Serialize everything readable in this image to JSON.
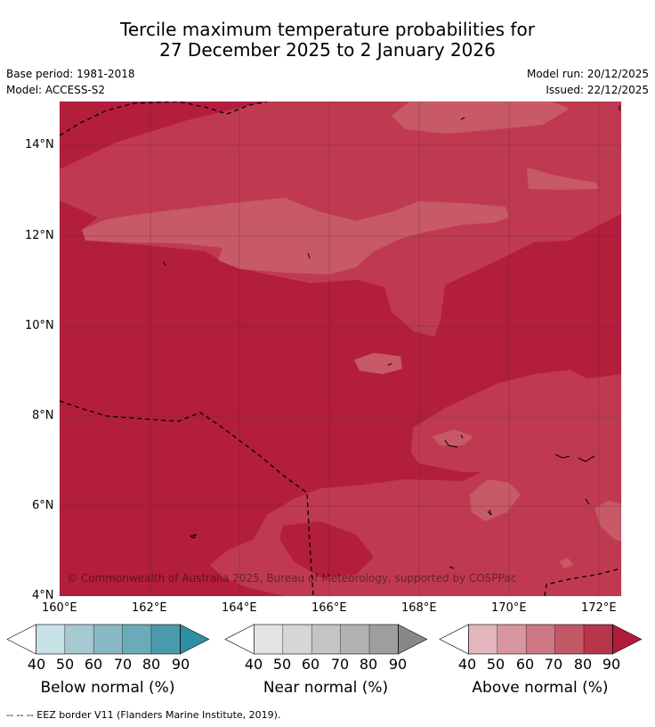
{
  "title": {
    "line1": "Tercile maximum temperature probabilities for",
    "line2": "27 December 2025 to 2 January 2026"
  },
  "meta": {
    "base_period": "Base period: 1981-2018",
    "model": "Model: ACCESS-S2",
    "model_run": "Model run: 20/12/2025",
    "issued": "Issued: 22/12/2025"
  },
  "map": {
    "lat_labels": [
      "14°N",
      "12°N",
      "10°N",
      "8°N",
      "6°N",
      "4°N"
    ],
    "lon_labels": [
      "160°E",
      "162°E",
      "164°E",
      "166°E",
      "168°E",
      "170°E",
      "172°E"
    ],
    "copyright": "© Commonwealth of Australia 2025, Bureau of Meteorology, supported by COSPPac",
    "colors": {
      "dark": "#b31e3c",
      "mid": "#bf3a50",
      "light": "#c85a68"
    }
  },
  "colorbars": [
    {
      "label": "Below normal (%)",
      "ticks": [
        "40",
        "50",
        "60",
        "70",
        "80",
        "90"
      ],
      "colors": [
        "#ffffff",
        "#c8e2e8",
        "#a6c8d0",
        "#89b8c5",
        "#6aaab9",
        "#4a9aad",
        "#2e8fa4"
      ]
    },
    {
      "label": "Near normal (%)",
      "ticks": [
        "40",
        "50",
        "60",
        "70",
        "80",
        "90"
      ],
      "colors": [
        "#ffffff",
        "#e4e4e4",
        "#d6d6d6",
        "#c4c4c4",
        "#b2b2b2",
        "#9e9e9e",
        "#888888"
      ]
    },
    {
      "label": "Above normal (%)",
      "ticks": [
        "40",
        "50",
        "60",
        "70",
        "80",
        "90"
      ],
      "colors": [
        "#ffffff",
        "#e2b6bc",
        "#d8969e",
        "#cd7882",
        "#c25866",
        "#b8364a",
        "#b01c3a"
      ]
    }
  ],
  "footnote": "--  --  -- EEZ border V11 (Flanders Marine Institute, 2019)."
}
